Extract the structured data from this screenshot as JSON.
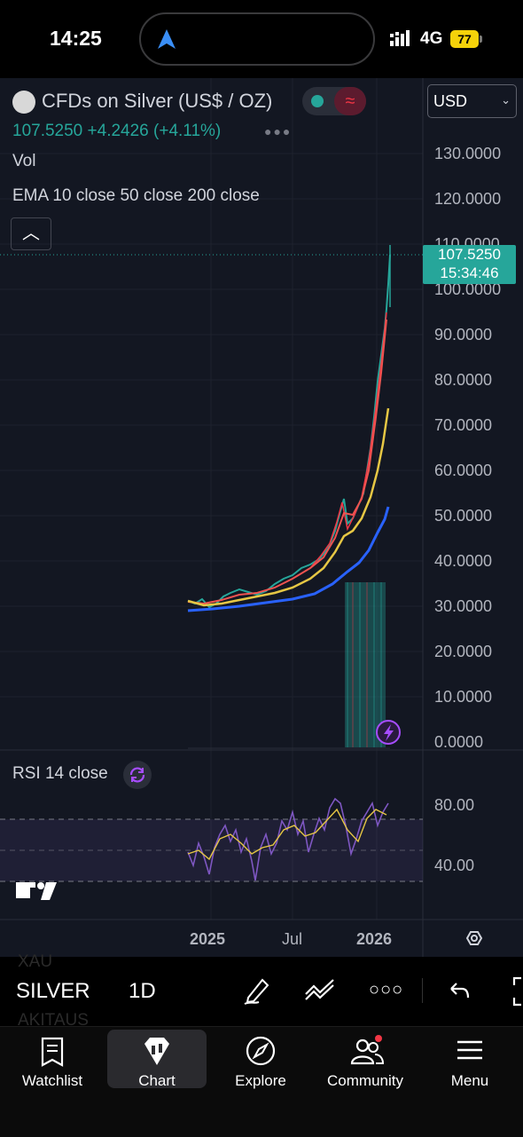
{
  "status_bar": {
    "time": "14:25",
    "network": "4G",
    "battery": "77"
  },
  "header": {
    "title": "CFDs on Silver (US$ / OZ)",
    "price": "107.5250",
    "change": "+4.2426",
    "change_pct": "(+4.11%)",
    "currency": "USD",
    "vol_label": "Vol",
    "ema_label": "EMA 10 close 50 close 200 close"
  },
  "price_axis": {
    "ticks": [
      "130.0000",
      "120.0000",
      "110.0000",
      "100.0000",
      "90.0000",
      "80.0000",
      "70.0000",
      "60.0000",
      "50.0000",
      "40.0000",
      "30.0000",
      "20.0000",
      "10.0000",
      "0.0000"
    ],
    "last_price": "107.5250",
    "countdown": "15:34:46"
  },
  "rsi": {
    "label": "RSI 14 close",
    "ticks": [
      "80.00",
      "40.00"
    ]
  },
  "time_axis": {
    "ticks": [
      "2025",
      "Jul",
      "2026"
    ]
  },
  "toolbar": {
    "symbol": "SILVER",
    "timeframe": "1D",
    "ghost_top": "XAU",
    "ghost_bottom": "AKITAUS"
  },
  "tabs": [
    {
      "label": "Watchlist",
      "icon": "watchlist-icon"
    },
    {
      "label": "Chart",
      "icon": "chart-icon"
    },
    {
      "label": "Explore",
      "icon": "compass-icon"
    },
    {
      "label": "Community",
      "icon": "community-icon"
    },
    {
      "label": "Menu",
      "icon": "menu-icon"
    }
  ],
  "colors": {
    "up": "#26a69a",
    "down": "#f23645",
    "ema10": "#ef5350",
    "ema50": "#e6c744",
    "ema200": "#2962ff",
    "rsi": "#7e57c2"
  },
  "chart_data": {
    "type": "line",
    "title": "CFDs on Silver (US$ / OZ)",
    "ylim": [
      0,
      130
    ],
    "x": [
      "2024-11",
      "2025-01",
      "2025-03",
      "2025-05",
      "2025-07",
      "2025-09",
      "2025-10",
      "2025-11",
      "2025-12",
      "2026-01"
    ],
    "series": [
      {
        "name": "EMA 10",
        "values": [
          31,
          30,
          32,
          33,
          36,
          43,
          51,
          50,
          70,
          95
        ]
      },
      {
        "name": "EMA 50",
        "values": [
          31,
          30,
          31,
          32,
          34,
          39,
          46,
          48,
          58,
          74
        ]
      },
      {
        "name": "EMA 200",
        "values": [
          29,
          29.5,
          30,
          31,
          32,
          35,
          38,
          40,
          45,
          52
        ]
      }
    ],
    "last_price": 107.525
  }
}
